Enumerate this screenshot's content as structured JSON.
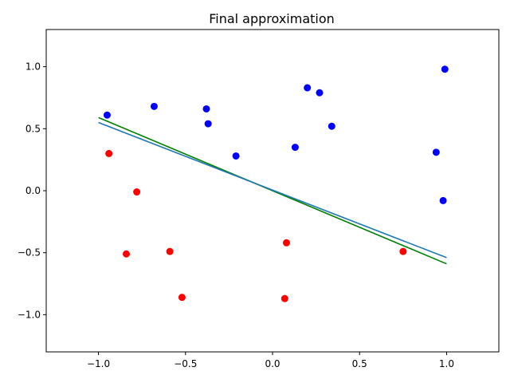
{
  "chart_data": {
    "type": "scatter",
    "title": "Final approximation",
    "xlabel": "",
    "ylabel": "",
    "xlim": [
      -1.3,
      1.3
    ],
    "ylim": [
      -1.3,
      1.3
    ],
    "xticks": [
      -1.0,
      -0.5,
      0.0,
      0.5,
      1.0
    ],
    "xtick_labels": [
      "−1.0",
      "−0.5",
      "0.0",
      "0.5",
      "1.0"
    ],
    "yticks": [
      -1.0,
      -0.5,
      0.0,
      0.5,
      1.0
    ],
    "ytick_labels": [
      "−1.0",
      "−0.5",
      "0.0",
      "0.5",
      "1.0"
    ],
    "grid": false,
    "legend": "none",
    "series": [
      {
        "kind": "points",
        "color": "#0000ff",
        "points": [
          [
            -0.95,
            0.61
          ],
          [
            -0.68,
            0.68
          ],
          [
            -0.38,
            0.66
          ],
          [
            -0.37,
            0.54
          ],
          [
            -0.21,
            0.28
          ],
          [
            0.13,
            0.35
          ],
          [
            0.2,
            0.83
          ],
          [
            0.27,
            0.79
          ],
          [
            0.34,
            0.52
          ],
          [
            0.94,
            0.31
          ],
          [
            0.99,
            0.98
          ],
          [
            0.98,
            -0.08
          ]
        ]
      },
      {
        "kind": "points",
        "color": "#ff0000",
        "points": [
          [
            -0.94,
            0.3
          ],
          [
            -0.78,
            -0.01
          ],
          [
            -0.84,
            -0.51
          ],
          [
            -0.59,
            -0.49
          ],
          [
            -0.52,
            -0.86
          ],
          [
            0.08,
            -0.42
          ],
          [
            0.07,
            -0.87
          ],
          [
            0.75,
            -0.49
          ]
        ]
      },
      {
        "kind": "line",
        "color": "#008000",
        "points": [
          [
            -1.0,
            0.59
          ],
          [
            1.0,
            -0.59
          ]
        ]
      },
      {
        "kind": "line",
        "color": "#1f77b4",
        "points": [
          [
            -1.0,
            0.55
          ],
          [
            1.0,
            -0.54
          ]
        ]
      }
    ]
  }
}
